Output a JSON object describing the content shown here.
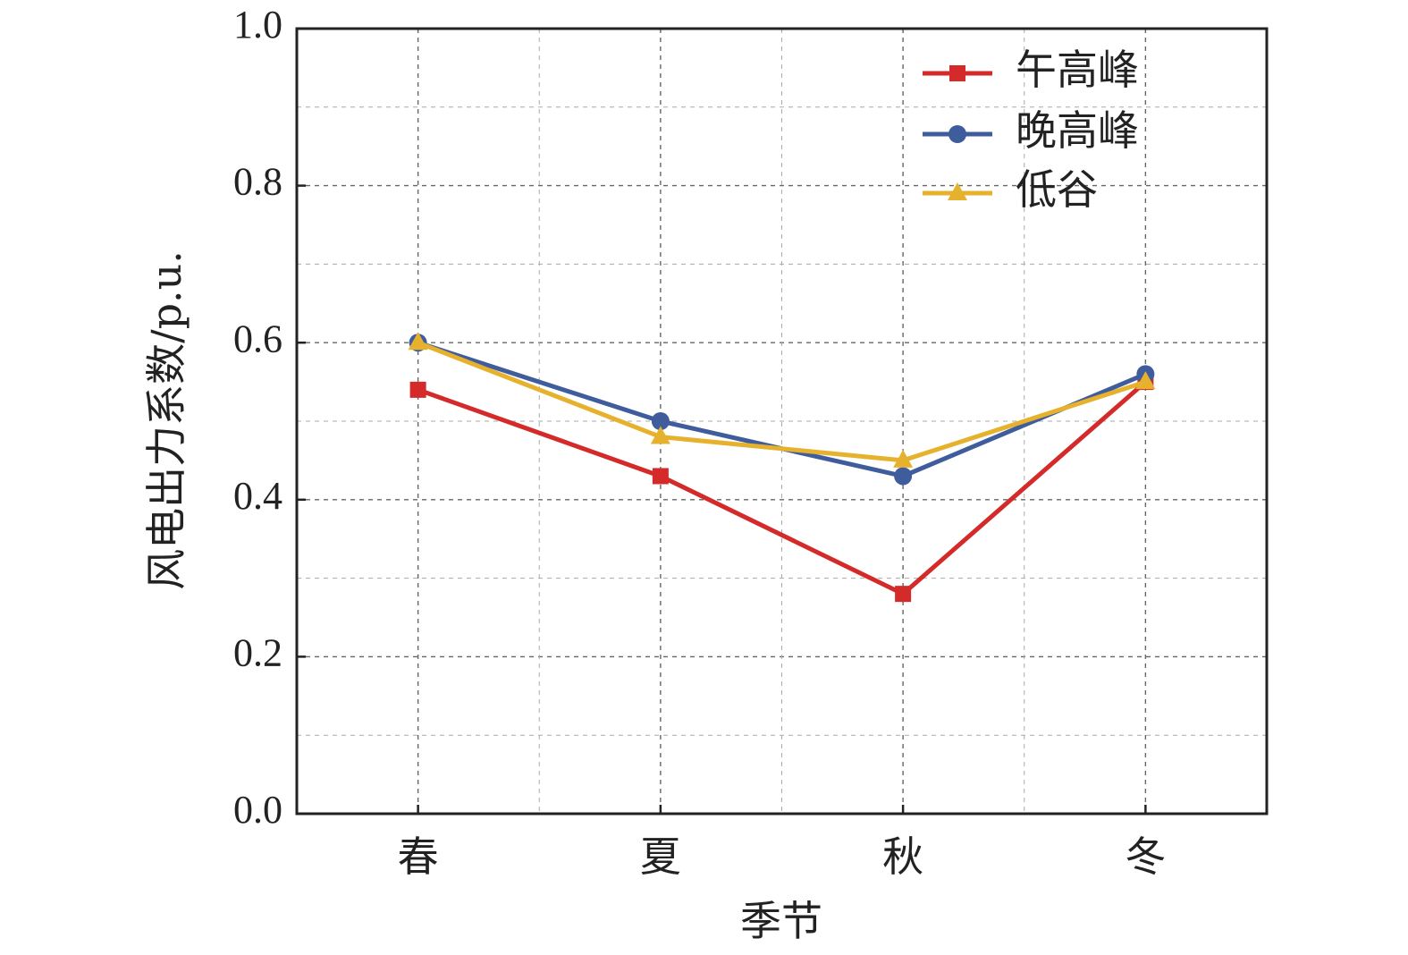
{
  "chart_data": {
    "type": "line",
    "xlabel": "季节",
    "ylabel": "风电出力系数/p.u.",
    "categories": [
      "春",
      "夏",
      "秋",
      "冬"
    ],
    "ylim": [
      0.0,
      1.0
    ],
    "yticks": [
      "0.0",
      "0.2",
      "0.4",
      "0.6",
      "0.8",
      "1.0"
    ],
    "grid": true,
    "legend_position": "top-right",
    "series": [
      {
        "name": "午高峰",
        "values": [
          0.54,
          0.43,
          0.28,
          0.55
        ],
        "color": "#d42a2a",
        "marker": "square"
      },
      {
        "name": "晚高峰",
        "values": [
          0.6,
          0.5,
          0.43,
          0.56
        ],
        "color": "#3f5c9c",
        "marker": "circle"
      },
      {
        "name": "低谷",
        "values": [
          0.6,
          0.48,
          0.45,
          0.55
        ],
        "color": "#e6b22e",
        "marker": "triangle"
      }
    ]
  }
}
